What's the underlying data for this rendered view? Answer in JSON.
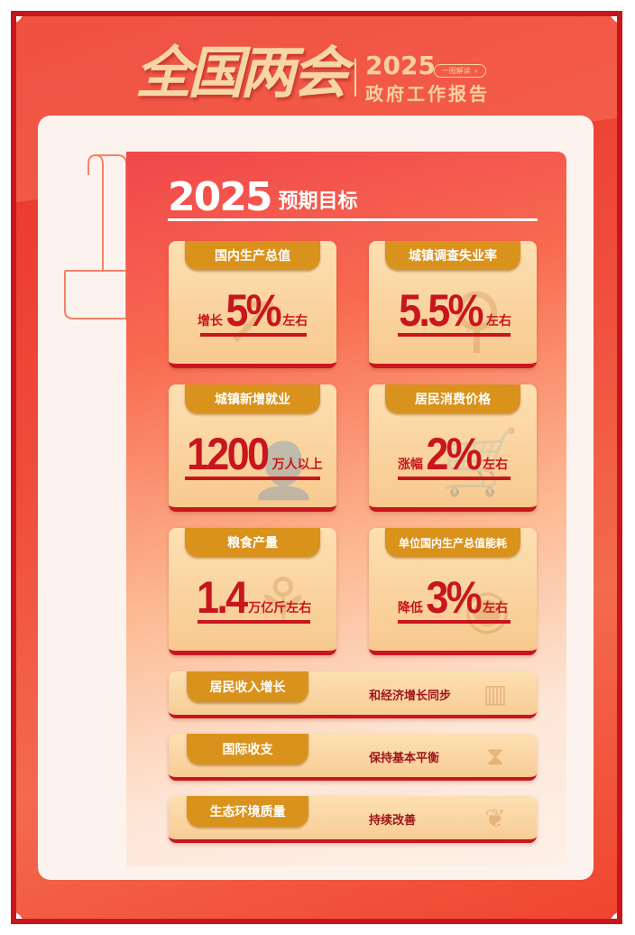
{
  "header": {
    "title": "全国两会",
    "year": "2025",
    "badge": "一图解读",
    "subtitle": "政府工作报告"
  },
  "section": {
    "year": "2025",
    "label": "预期目标"
  },
  "cards": [
    {
      "title": "国内生产总值",
      "prefix": "增长",
      "value": "5%",
      "suffix": "左右",
      "icon": "trend-chart-icon"
    },
    {
      "title": "城镇调查失业率",
      "prefix": "",
      "value": "5.5%",
      "suffix": "左右",
      "icon": "magnifier-icon"
    },
    {
      "title": "城镇新增就业",
      "prefix": "",
      "value": "1200",
      "suffix": "万人以上",
      "icon": "worker-icon"
    },
    {
      "title": "居民消费价格",
      "prefix": "涨幅",
      "value": "2%",
      "suffix": "左右",
      "icon": "shopping-cart-icon"
    },
    {
      "title": "粮食产量",
      "prefix": "",
      "value": "1.4",
      "suffix": "万亿斤左右",
      "icon": "wheat-icon"
    },
    {
      "title": "单位国内生产总值能耗",
      "prefix": "降低",
      "value": "3%",
      "suffix": "左右",
      "icon": "coins-icon"
    }
  ],
  "wide": [
    {
      "title": "居民收入增长",
      "text": "和经济增长同步",
      "icon": "barcode-scan-icon"
    },
    {
      "title": "国际收支",
      "text": "保持基本平衡",
      "icon": "hourglass-icon"
    },
    {
      "title": "生态环境质量",
      "text": "持续改善",
      "icon": "sprout-icon"
    }
  ],
  "colors": {
    "red": "#c8161d",
    "gold": "#d9921c",
    "cream": "#fde0b2"
  }
}
